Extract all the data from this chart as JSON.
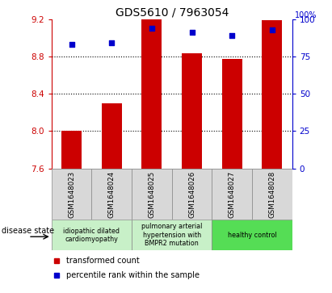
{
  "title": "GDS5610 / 7963054",
  "samples": [
    "GSM1648023",
    "GSM1648024",
    "GSM1648025",
    "GSM1648026",
    "GSM1648027",
    "GSM1648028"
  ],
  "transformed_count": [
    8.0,
    8.3,
    9.2,
    8.83,
    8.77,
    9.19
  ],
  "percentile_rank": [
    83,
    84,
    94,
    91,
    89,
    93
  ],
  "ylim_left": [
    7.6,
    9.2
  ],
  "ylim_right": [
    0,
    100
  ],
  "yticks_left": [
    7.6,
    8.0,
    8.4,
    8.8,
    9.2
  ],
  "yticks_right": [
    0,
    25,
    50,
    75,
    100
  ],
  "bar_color": "#cc0000",
  "dot_color": "#0000cc",
  "gridlines": [
    8.0,
    8.4,
    8.8
  ],
  "disease_groups": [
    {
      "label": "idiopathic dilated\ncardiomyopathy",
      "samples": [
        0,
        1
      ],
      "color": "#c8f0c8"
    },
    {
      "label": "pulmonary arterial\nhypertension with\nBMPR2 mutation",
      "samples": [
        2,
        3
      ],
      "color": "#c8f0c8"
    },
    {
      "label": "healthy control",
      "samples": [
        4,
        5
      ],
      "color": "#55dd55"
    }
  ],
  "legend_bar_label": "transformed count",
  "legend_dot_label": "percentile rank within the sample",
  "disease_state_label": "disease state",
  "bar_color_left": "#cc0000",
  "dot_color_blue": "#0000cc",
  "bar_width": 0.5,
  "cell_color": "#d8d8d8",
  "background_color": "#ffffff"
}
